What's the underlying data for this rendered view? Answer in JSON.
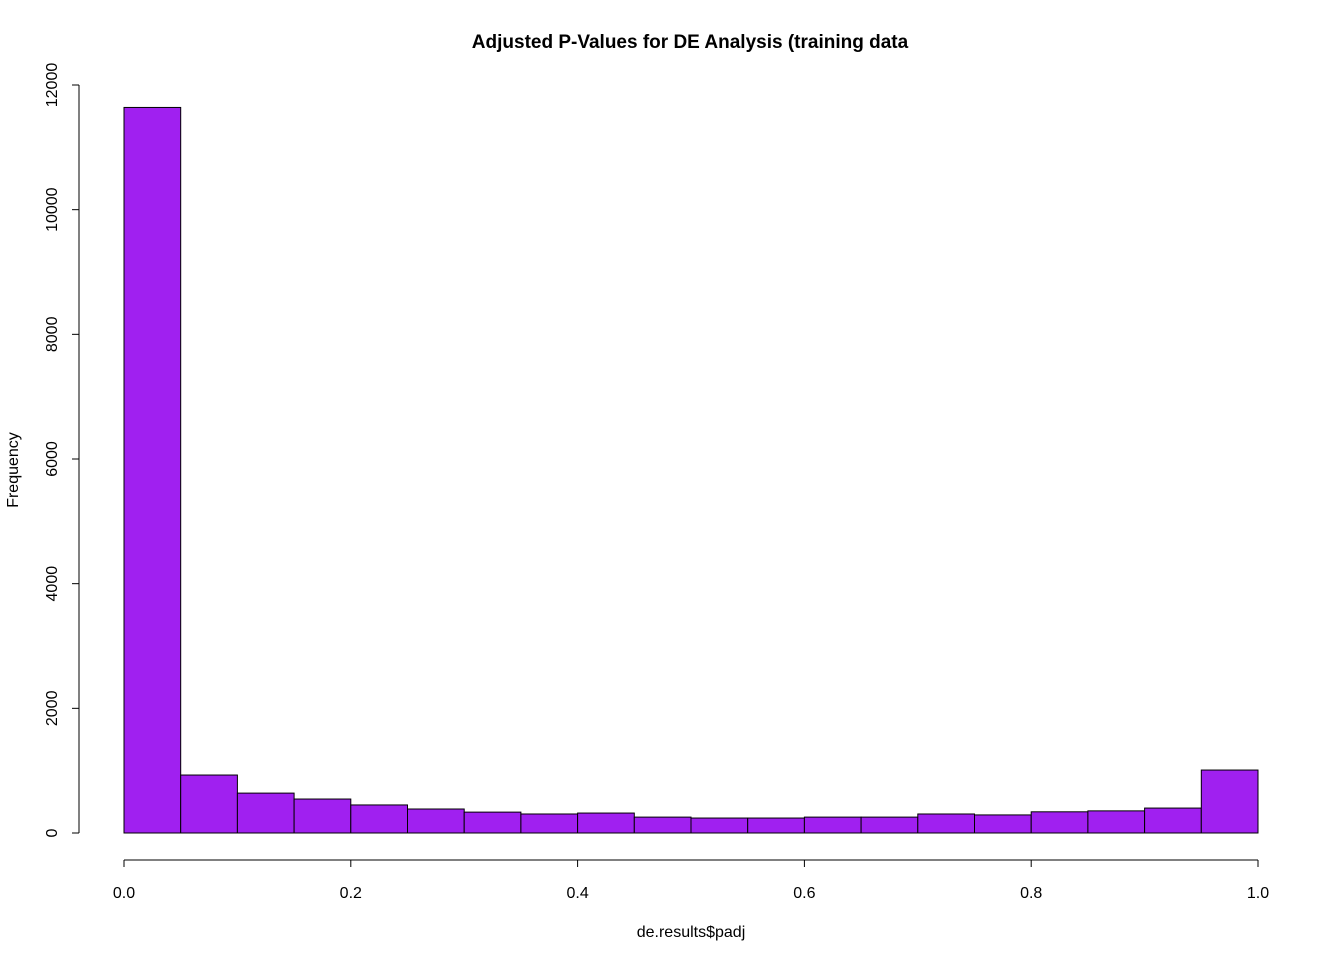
{
  "chart_data": {
    "type": "bar",
    "subtype": "histogram",
    "title": "Adjusted P-Values for DE Analysis (training data",
    "xlabel": "de.results$padj",
    "ylabel": "Frequency",
    "bar_color": "#A020F0",
    "border_color": "#000000",
    "xlim": [
      0,
      1
    ],
    "ylim": [
      0,
      12000
    ],
    "x_ticks": [
      0.0,
      0.2,
      0.4,
      0.6,
      0.8,
      1.0
    ],
    "x_tick_labels": [
      "0.0",
      "0.2",
      "0.4",
      "0.6",
      "0.8",
      "1.0"
    ],
    "y_ticks": [
      0,
      2000,
      4000,
      6000,
      8000,
      10000,
      12000
    ],
    "y_tick_labels": [
      "0",
      "2000",
      "4000",
      "6000",
      "8000",
      "10000",
      "12000"
    ],
    "bin_edges": [
      0.0,
      0.05,
      0.1,
      0.15,
      0.2,
      0.25,
      0.3,
      0.35,
      0.4,
      0.45,
      0.5,
      0.55,
      0.6,
      0.65,
      0.7,
      0.75,
      0.8,
      0.85,
      0.9,
      0.95,
      1.0
    ],
    "values": [
      11640,
      930,
      640,
      545,
      450,
      385,
      335,
      305,
      320,
      255,
      240,
      240,
      255,
      255,
      305,
      290,
      340,
      355,
      400,
      1010
    ],
    "grid": false,
    "legend": "none"
  }
}
